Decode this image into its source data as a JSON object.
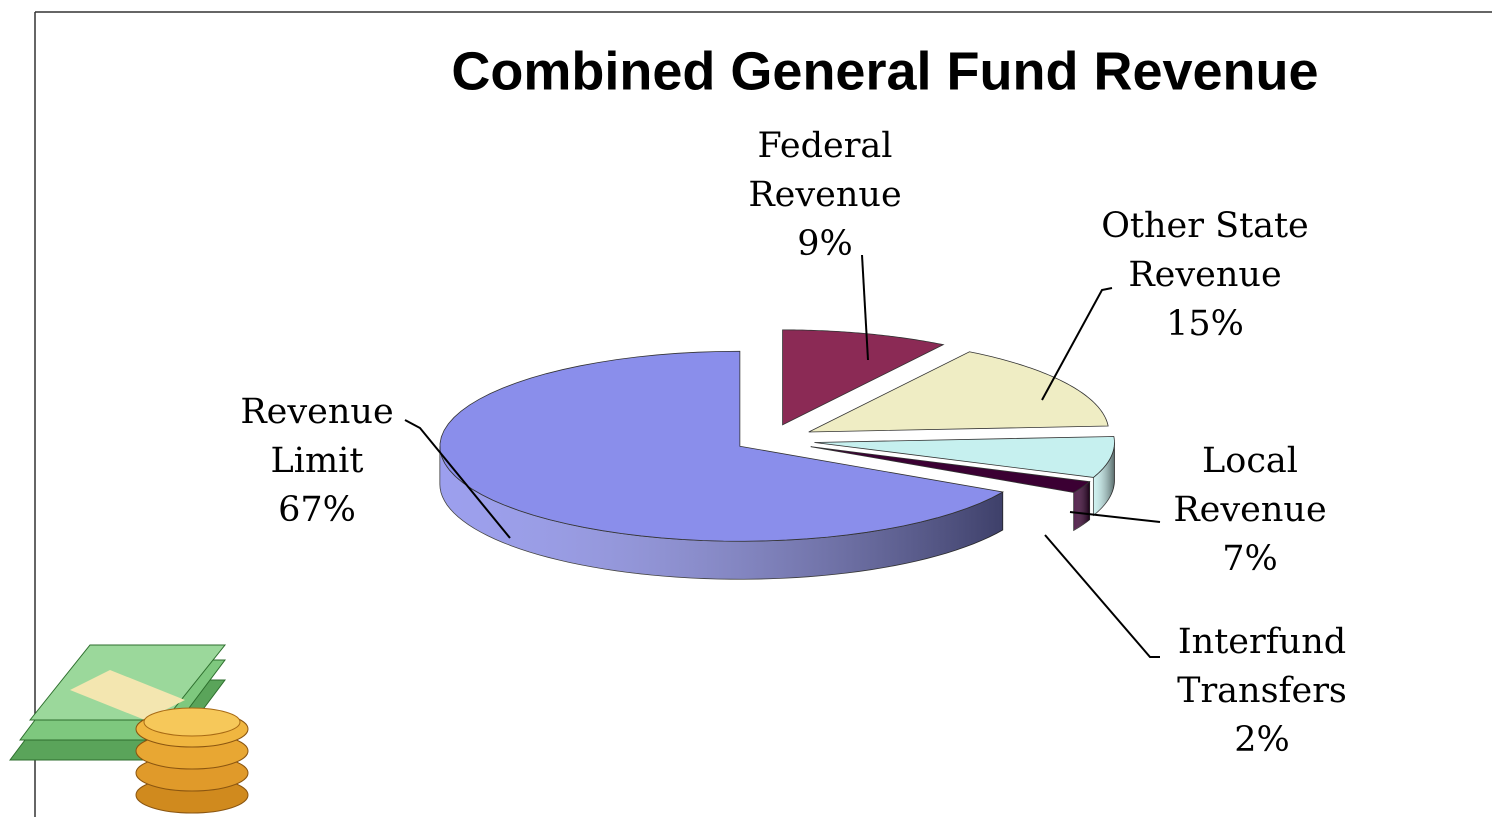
{
  "chart_data": {
    "type": "pie",
    "title": "Combined General Fund Revenue",
    "categories": [
      "Federal Revenue",
      "Other State Revenue",
      "Local Revenue",
      "Interfund Transfers",
      "Revenue Limit"
    ],
    "values": [
      9,
      15,
      7,
      2,
      67
    ],
    "value_labels": [
      "9%",
      "15%",
      "7%",
      "2%",
      "67%"
    ],
    "colors": [
      "#8b2a55",
      "#efedc4",
      "#c6f0ef",
      "#3b0033",
      "#8a8eeb"
    ]
  }
}
